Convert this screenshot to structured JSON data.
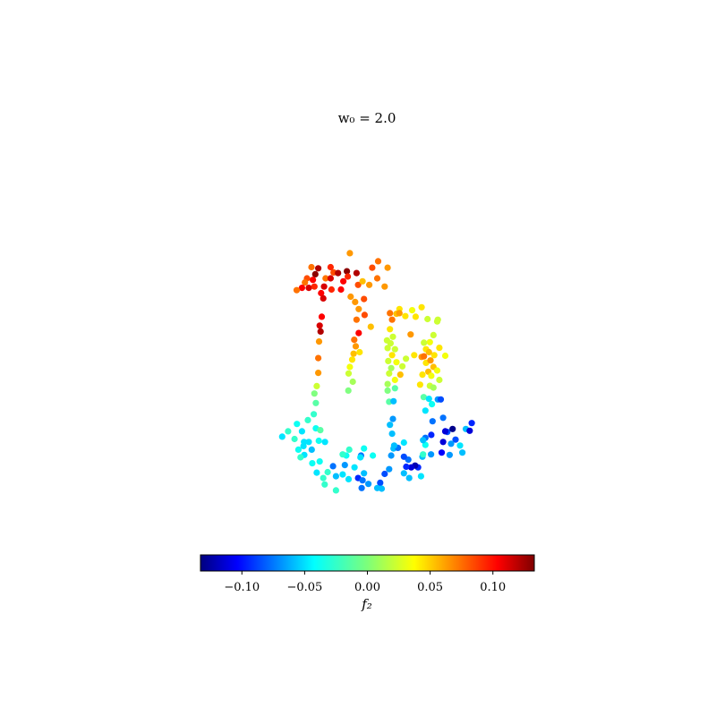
{
  "chart_data": {
    "type": "scatter",
    "title": "w₀ = 2.0",
    "axes_visible": false,
    "colormap": "jet",
    "colorbar": {
      "label": "f₂",
      "range": [
        -0.133,
        0.133
      ],
      "ticks": [
        -0.1,
        -0.05,
        0.0,
        0.05,
        0.1
      ],
      "tick_labels": [
        "−0.10",
        "−0.05",
        "0.00",
        "0.05",
        "0.10"
      ],
      "orientation": "horizontal",
      "placement": "bottom"
    },
    "xlim": [
      -1.0,
      1.0
    ],
    "ylim": [
      -1.0,
      1.0
    ],
    "points": [
      {
        "x": -0.058,
        "y": 0.385,
        "c": 0.06
      },
      {
        "x": -0.068,
        "y": 0.324,
        "c": 0.13
      },
      {
        "x": 0.038,
        "y": 0.358,
        "c": 0.07
      },
      {
        "x": 0.07,
        "y": 0.336,
        "c": 0.06
      },
      {
        "x": 0.018,
        "y": 0.336,
        "c": 0.08
      },
      {
        "x": -0.14,
        "y": 0.3,
        "c": 0.07
      },
      {
        "x": -0.123,
        "y": 0.3,
        "c": 0.11
      },
      {
        "x": -0.113,
        "y": 0.32,
        "c": 0.08
      },
      {
        "x": -0.123,
        "y": 0.338,
        "c": 0.09
      },
      {
        "x": -0.098,
        "y": 0.318,
        "c": 0.12
      },
      {
        "x": -0.065,
        "y": 0.306,
        "c": 0.09
      },
      {
        "x": -0.08,
        "y": 0.29,
        "c": 0.1
      },
      {
        "x": -0.035,
        "y": 0.318,
        "c": 0.12
      },
      {
        "x": -0.165,
        "y": 0.334,
        "c": 0.12
      },
      {
        "x": -0.175,
        "y": 0.314,
        "c": 0.13
      },
      {
        "x": -0.183,
        "y": 0.295,
        "c": 0.1
      },
      {
        "x": -0.203,
        "y": 0.3,
        "c": 0.08
      },
      {
        "x": -0.188,
        "y": 0.338,
        "c": 0.07
      },
      {
        "x": -0.21,
        "y": 0.286,
        "c": 0.07
      },
      {
        "x": -0.22,
        "y": 0.268,
        "c": 0.1
      },
      {
        "x": -0.197,
        "y": 0.268,
        "c": 0.11
      },
      {
        "x": -0.178,
        "y": 0.272,
        "c": 0.09
      },
      {
        "x": -0.145,
        "y": 0.272,
        "c": 0.11
      },
      {
        "x": -0.155,
        "y": 0.25,
        "c": 0.1
      },
      {
        "x": -0.12,
        "y": 0.262,
        "c": 0.09
      },
      {
        "x": -0.088,
        "y": 0.262,
        "c": 0.1
      },
      {
        "x": -0.03,
        "y": 0.278,
        "c": 0.08
      },
      {
        "x": -0.015,
        "y": 0.29,
        "c": 0.05
      },
      {
        "x": 0.008,
        "y": 0.278,
        "c": 0.06
      },
      {
        "x": 0.035,
        "y": 0.3,
        "c": 0.07
      },
      {
        "x": 0.06,
        "y": 0.272,
        "c": 0.06
      },
      {
        "x": -0.238,
        "y": 0.26,
        "c": 0.07
      },
      {
        "x": -0.148,
        "y": 0.232,
        "c": 0.11
      },
      {
        "x": -0.055,
        "y": 0.238,
        "c": 0.06
      },
      {
        "x": -0.04,
        "y": 0.22,
        "c": 0.06
      },
      {
        "x": -0.028,
        "y": 0.196,
        "c": 0.06
      },
      {
        "x": -0.01,
        "y": 0.23,
        "c": 0.08
      },
      {
        "x": -0.008,
        "y": 0.176,
        "c": 0.08
      },
      {
        "x": -0.035,
        "y": 0.16,
        "c": 0.07
      },
      {
        "x": 0.013,
        "y": 0.136,
        "c": 0.05
      },
      {
        "x": -0.028,
        "y": 0.115,
        "c": 0.1
      },
      {
        "x": -0.043,
        "y": 0.092,
        "c": 0.07
      },
      {
        "x": -0.038,
        "y": 0.07,
        "c": 0.06
      },
      {
        "x": -0.045,
        "y": 0.045,
        "c": 0.05
      },
      {
        "x": -0.025,
        "y": 0.05,
        "c": 0.04
      },
      {
        "x": -0.05,
        "y": 0.025,
        "c": 0.04
      },
      {
        "x": -0.058,
        "y": 0.0,
        "c": 0.03
      },
      {
        "x": -0.062,
        "y": -0.022,
        "c": 0.02
      },
      {
        "x": -0.048,
        "y": -0.05,
        "c": 0.01
      },
      {
        "x": -0.063,
        "y": -0.08,
        "c": 0.0
      },
      {
        "x": -0.153,
        "y": 0.17,
        "c": 0.1
      },
      {
        "x": -0.16,
        "y": 0.14,
        "c": 0.11
      },
      {
        "x": -0.157,
        "y": 0.12,
        "c": 0.12
      },
      {
        "x": -0.162,
        "y": 0.086,
        "c": 0.06
      },
      {
        "x": -0.165,
        "y": 0.03,
        "c": 0.07
      },
      {
        "x": -0.165,
        "y": -0.02,
        "c": 0.06
      },
      {
        "x": -0.17,
        "y": -0.065,
        "c": 0.02
      },
      {
        "x": -0.178,
        "y": -0.09,
        "c": 0.0
      },
      {
        "x": -0.173,
        "y": -0.122,
        "c": -0.01
      },
      {
        "x": -0.18,
        "y": -0.16,
        "c": -0.02
      },
      {
        "x": -0.2,
        "y": -0.18,
        "c": -0.02
      },
      {
        "x": -0.173,
        "y": -0.208,
        "c": -0.03
      },
      {
        "x": -0.158,
        "y": -0.214,
        "c": -0.01
      },
      {
        "x": -0.237,
        "y": -0.193,
        "c": -0.03
      },
      {
        "x": -0.22,
        "y": -0.218,
        "c": -0.04
      },
      {
        "x": -0.267,
        "y": -0.218,
        "c": -0.02
      },
      {
        "x": -0.287,
        "y": -0.236,
        "c": -0.04
      },
      {
        "x": -0.245,
        "y": -0.244,
        "c": -0.02
      },
      {
        "x": -0.213,
        "y": -0.254,
        "c": -0.04
      },
      {
        "x": -0.197,
        "y": -0.254,
        "c": -0.04
      },
      {
        "x": -0.163,
        "y": -0.25,
        "c": -0.03
      },
      {
        "x": -0.142,
        "y": -0.254,
        "c": -0.04
      },
      {
        "x": -0.232,
        "y": -0.28,
        "c": -0.03
      },
      {
        "x": -0.215,
        "y": -0.268,
        "c": -0.04
      },
      {
        "x": -0.187,
        "y": -0.28,
        "c": -0.05
      },
      {
        "x": -0.212,
        "y": -0.298,
        "c": -0.04
      },
      {
        "x": -0.225,
        "y": -0.306,
        "c": -0.02
      },
      {
        "x": -0.185,
        "y": -0.326,
        "c": -0.03
      },
      {
        "x": -0.16,
        "y": -0.32,
        "c": -0.03
      },
      {
        "x": -0.115,
        "y": -0.336,
        "c": -0.07
      },
      {
        "x": -0.07,
        "y": -0.3,
        "c": -0.03
      },
      {
        "x": -0.06,
        "y": -0.28,
        "c": -0.02
      },
      {
        "x": -0.082,
        "y": -0.296,
        "c": -0.02
      },
      {
        "x": -0.042,
        "y": -0.34,
        "c": -0.04
      },
      {
        "x": -0.02,
        "y": -0.3,
        "c": -0.07
      },
      {
        "x": -0.01,
        "y": -0.36,
        "c": -0.05
      },
      {
        "x": 0.02,
        "y": -0.3,
        "c": -0.03
      },
      {
        "x": -0.105,
        "y": -0.37,
        "c": -0.05
      },
      {
        "x": -0.133,
        "y": -0.356,
        "c": -0.02
      },
      {
        "x": -0.17,
        "y": -0.358,
        "c": -0.04
      },
      {
        "x": -0.148,
        "y": -0.376,
        "c": -0.02
      },
      {
        "x": -0.143,
        "y": -0.398,
        "c": -0.02
      },
      {
        "x": -0.105,
        "y": -0.418,
        "c": -0.02
      },
      {
        "x": -0.082,
        "y": -0.364,
        "c": -0.04
      },
      {
        "x": -0.062,
        "y": -0.38,
        "c": -0.04
      },
      {
        "x": -0.03,
        "y": -0.376,
        "c": -0.09
      },
      {
        "x": -0.015,
        "y": -0.384,
        "c": -0.07
      },
      {
        "x": -0.018,
        "y": -0.41,
        "c": -0.07
      },
      {
        "x": 0.005,
        "y": -0.396,
        "c": -0.06
      },
      {
        "x": 0.045,
        "y": -0.392,
        "c": -0.08
      },
      {
        "x": 0.05,
        "y": -0.412,
        "c": -0.05
      },
      {
        "x": 0.035,
        "y": -0.41,
        "c": -0.05
      },
      {
        "x": 0.06,
        "y": -0.362,
        "c": -0.08
      },
      {
        "x": 0.075,
        "y": -0.346,
        "c": -0.06
      },
      {
        "x": 0.082,
        "y": -0.3,
        "c": -0.06
      },
      {
        "x": 0.09,
        "y": -0.276,
        "c": -0.05
      },
      {
        "x": 0.085,
        "y": -0.226,
        "c": -0.05
      },
      {
        "x": 0.078,
        "y": -0.196,
        "c": -0.05
      },
      {
        "x": 0.088,
        "y": -0.176,
        "c": -0.06
      },
      {
        "x": 0.075,
        "y": -0.118,
        "c": -0.01
      },
      {
        "x": 0.09,
        "y": -0.116,
        "c": -0.05
      },
      {
        "x": 0.07,
        "y": -0.08,
        "c": 0.0
      },
      {
        "x": 0.07,
        "y": -0.058,
        "c": 0.01
      },
      {
        "x": 0.075,
        "y": -0.022,
        "c": 0.02
      },
      {
        "x": 0.082,
        "y": -0.004,
        "c": 0.01
      },
      {
        "x": 0.072,
        "y": 0.02,
        "c": 0.02
      },
      {
        "x": 0.085,
        "y": 0.04,
        "c": 0.04
      },
      {
        "x": 0.07,
        "y": 0.064,
        "c": 0.02
      },
      {
        "x": 0.08,
        "y": 0.08,
        "c": 0.02
      },
      {
        "x": 0.1,
        "y": 0.016,
        "c": 0.03
      },
      {
        "x": 0.113,
        "y": -0.026,
        "c": 0.05
      },
      {
        "x": 0.095,
        "y": -0.044,
        "c": 0.03
      },
      {
        "x": 0.068,
        "y": 0.09,
        "c": 0.02
      },
      {
        "x": 0.078,
        "y": 0.128,
        "c": 0.04
      },
      {
        "x": 0.088,
        "y": 0.102,
        "c": 0.02
      },
      {
        "x": 0.078,
        "y": 0.182,
        "c": 0.07
      },
      {
        "x": 0.085,
        "y": 0.16,
        "c": 0.07
      },
      {
        "x": 0.11,
        "y": 0.196,
        "c": 0.04
      },
      {
        "x": 0.13,
        "y": 0.172,
        "c": 0.04
      },
      {
        "x": 0.153,
        "y": 0.192,
        "c": 0.03
      },
      {
        "x": 0.165,
        "y": 0.17,
        "c": 0.04
      },
      {
        "x": 0.148,
        "y": 0.11,
        "c": 0.06
      },
      {
        "x": 0.185,
        "y": 0.202,
        "c": 0.04
      },
      {
        "x": 0.205,
        "y": 0.162,
        "c": 0.02
      },
      {
        "x": 0.238,
        "y": 0.154,
        "c": 0.02
      },
      {
        "x": 0.225,
        "y": 0.108,
        "c": 0.02
      },
      {
        "x": 0.213,
        "y": 0.084,
        "c": 0.03
      },
      {
        "x": 0.2,
        "y": 0.06,
        "c": 0.04
      },
      {
        "x": 0.185,
        "y": 0.034,
        "c": 0.06
      },
      {
        "x": 0.2,
        "y": 0.014,
        "c": 0.04
      },
      {
        "x": 0.215,
        "y": 0.022,
        "c": 0.06
      },
      {
        "x": 0.228,
        "y": 0.04,
        "c": 0.04
      },
      {
        "x": 0.225,
        "y": 0.0,
        "c": 0.05
      },
      {
        "x": 0.208,
        "y": -0.016,
        "c": 0.05
      },
      {
        "x": 0.218,
        "y": -0.03,
        "c": 0.03
      },
      {
        "x": 0.238,
        "y": -0.012,
        "c": 0.03
      },
      {
        "x": 0.188,
        "y": -0.026,
        "c": 0.04
      },
      {
        "x": 0.18,
        "y": -0.06,
        "c": 0.04
      },
      {
        "x": 0.213,
        "y": -0.064,
        "c": 0.02
      },
      {
        "x": 0.225,
        "y": -0.07,
        "c": 0.01
      },
      {
        "x": 0.192,
        "y": -0.102,
        "c": -0.01
      },
      {
        "x": 0.21,
        "y": -0.108,
        "c": -0.04
      },
      {
        "x": 0.22,
        "y": -0.126,
        "c": -0.03
      },
      {
        "x": 0.24,
        "y": -0.11,
        "c": -0.06
      },
      {
        "x": 0.198,
        "y": -0.148,
        "c": -0.04
      },
      {
        "x": 0.222,
        "y": -0.184,
        "c": -0.07
      },
      {
        "x": 0.218,
        "y": -0.23,
        "c": -0.09
      },
      {
        "x": 0.198,
        "y": -0.24,
        "c": -0.07
      },
      {
        "x": 0.198,
        "y": -0.264,
        "c": -0.03
      },
      {
        "x": 0.217,
        "y": -0.296,
        "c": -0.06
      },
      {
        "x": 0.188,
        "y": -0.304,
        "c": -0.05
      },
      {
        "x": 0.173,
        "y": -0.34,
        "c": -0.09
      },
      {
        "x": 0.163,
        "y": -0.334,
        "c": -0.12
      },
      {
        "x": 0.15,
        "y": -0.34,
        "c": -0.11
      },
      {
        "x": 0.133,
        "y": -0.338,
        "c": -0.09
      },
      {
        "x": 0.14,
        "y": -0.314,
        "c": -0.07
      },
      {
        "x": 0.125,
        "y": -0.304,
        "c": -0.08
      },
      {
        "x": 0.125,
        "y": -0.36,
        "c": -0.05
      },
      {
        "x": 0.143,
        "y": -0.376,
        "c": -0.05
      },
      {
        "x": 0.183,
        "y": -0.37,
        "c": -0.04
      },
      {
        "x": 0.105,
        "y": -0.274,
        "c": -0.07
      },
      {
        "x": 0.125,
        "y": -0.256,
        "c": -0.04
      },
      {
        "x": 0.258,
        "y": -0.172,
        "c": -0.07
      },
      {
        "x": 0.272,
        "y": -0.22,
        "c": -0.08
      },
      {
        "x": 0.29,
        "y": -0.21,
        "c": -0.13
      },
      {
        "x": 0.3,
        "y": -0.246,
        "c": -0.08
      },
      {
        "x": 0.285,
        "y": -0.26,
        "c": -0.06
      },
      {
        "x": 0.258,
        "y": -0.254,
        "c": -0.11
      },
      {
        "x": 0.253,
        "y": -0.29,
        "c": -0.1
      },
      {
        "x": 0.28,
        "y": -0.298,
        "c": -0.06
      },
      {
        "x": 0.323,
        "y": -0.29,
        "c": -0.05
      },
      {
        "x": 0.315,
        "y": -0.266,
        "c": -0.04
      },
      {
        "x": 0.335,
        "y": -0.21,
        "c": -0.05
      },
      {
        "x": 0.348,
        "y": -0.216,
        "c": -0.11
      },
      {
        "x": 0.355,
        "y": -0.19,
        "c": -0.09
      },
      {
        "x": 0.265,
        "y": -0.218,
        "c": -0.11
      },
      {
        "x": 0.24,
        "y": 0.16,
        "c": 0.02
      },
      {
        "x": 0.193,
        "y": 0.082,
        "c": 0.02
      },
      {
        "x": 0.193,
        "y": 0.036,
        "c": 0.07
      },
      {
        "x": 0.21,
        "y": 0.05,
        "c": 0.05
      },
      {
        "x": 0.265,
        "y": 0.038,
        "c": 0.03
      },
      {
        "x": 0.245,
        "y": -0.044,
        "c": 0.02
      },
      {
        "x": 0.245,
        "y": 0.065,
        "c": 0.04
      },
      {
        "x": 0.16,
        "y": 0.04,
        "c": 0.04
      },
      {
        "x": 0.132,
        "y": 0.028,
        "c": 0.02
      },
      {
        "x": 0.12,
        "y": 0.002,
        "c": 0.02
      },
      {
        "x": 0.095,
        "y": 0.06,
        "c": 0.02
      },
      {
        "x": -0.01,
        "y": -0.276,
        "c": -0.03
      },
      {
        "x": -0.022,
        "y": -0.306,
        "c": -0.04
      },
      {
        "x": 0.095,
        "y": -0.072,
        "c": -0.01
      },
      {
        "x": 0.092,
        "y": -0.266,
        "c": -0.05
      },
      {
        "x": 0.19,
        "y": -0.248,
        "c": -0.05
      },
      {
        "x": 0.1,
        "y": 0.18,
        "c": 0.05
      },
      {
        "x": 0.11,
        "y": 0.182,
        "c": 0.06
      },
      {
        "x": -0.075,
        "y": -0.332,
        "c": -0.06
      },
      {
        "x": 0.19,
        "y": -0.296,
        "c": -0.02
      },
      {
        "x": 0.25,
        "y": -0.11,
        "c": -0.08
      }
    ]
  }
}
